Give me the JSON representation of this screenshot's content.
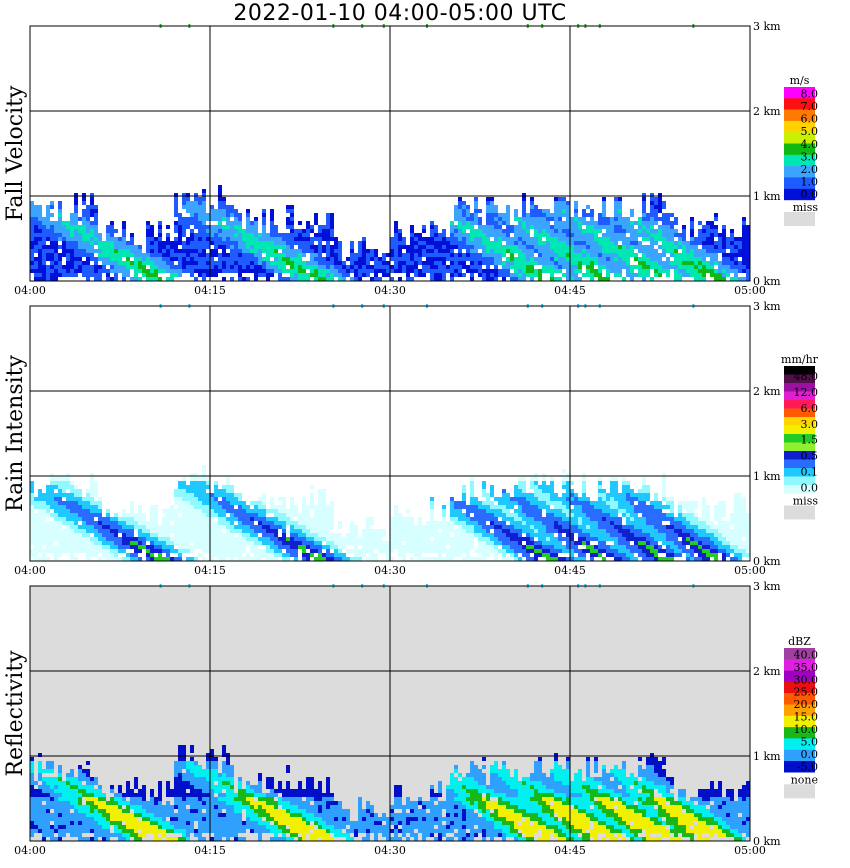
{
  "title": "2022-01-10   04:00-05:00 UTC",
  "chart_data": [
    {
      "type": "heatmap",
      "name": "Fall Velocity",
      "x_ticks": [
        "04:00",
        "04:15",
        "04:30",
        "04:45",
        "05:00"
      ],
      "y_ticks": [
        "0 km",
        "1 km",
        "2 km",
        "3 km"
      ],
      "ylim": [
        0,
        3
      ],
      "grid": true,
      "background": "#ffffff",
      "colorbar": {
        "unit": "m/s",
        "labels": [
          "8.0",
          "7.0",
          "6.0",
          "5.0",
          "4.0",
          "3.0",
          "2.0",
          "1.0",
          "0.0"
        ],
        "colors": [
          "#ff00ff",
          "#ff1010",
          "#ff7a00",
          "#ffd200",
          "#c8f000",
          "#11b811",
          "#00e7b4",
          "#3aa4ff",
          "#1e5cff",
          "#0010d8"
        ],
        "missing_label": "miss",
        "missing_color": "#dcdcdc"
      }
    },
    {
      "type": "heatmap",
      "name": "Rain Intensity",
      "x_ticks": [
        "04:00",
        "04:15",
        "04:30",
        "04:45",
        "05:00"
      ],
      "y_ticks": [
        "0 km",
        "1 km",
        "2 km",
        "3 km"
      ],
      "ylim": [
        0,
        3
      ],
      "grid": true,
      "background": "#ffffff",
      "colorbar": {
        "unit": "mm/hr",
        "labels": [
          "48.0",
          "12.0",
          "6.0",
          "3.0",
          "1.5",
          "0.5",
          "0.1",
          "0.0"
        ],
        "colors": [
          "#000000",
          "#50104a",
          "#9a10a0",
          "#e020d0",
          "#ff1a5a",
          "#ff5a00",
          "#ffd400",
          "#f0f000",
          "#22cc22",
          "#90f030",
          "#1020d0",
          "#2a6cff",
          "#20c8ff",
          "#90f8ff",
          "#d8ffff"
        ],
        "missing_label": "miss",
        "missing_color": "#dcdcdc"
      }
    },
    {
      "type": "heatmap",
      "name": "Reflectivity",
      "x_ticks": [
        "04:00",
        "04:15",
        "04:30",
        "04:45",
        "05:00"
      ],
      "y_ticks": [
        "0 km",
        "1 km",
        "2 km",
        "3 km"
      ],
      "ylim": [
        0,
        3
      ],
      "grid": true,
      "background": "#dcdcdc",
      "colorbar": {
        "unit": "dBZ",
        "labels": [
          "40.0",
          "35.0",
          "30.0",
          "25.0",
          "20.0",
          "15.0",
          "10.0",
          "5.0",
          "0.0",
          "-5.0"
        ],
        "colors": [
          "#a040a0",
          "#e020e0",
          "#a000c0",
          "#e81010",
          "#ff5a00",
          "#ffa000",
          "#f0f000",
          "#18b818",
          "#00f0f0",
          "#30a0ff",
          "#0010c8"
        ],
        "missing_label": "none",
        "missing_color": "#dcdcdc"
      }
    }
  ]
}
